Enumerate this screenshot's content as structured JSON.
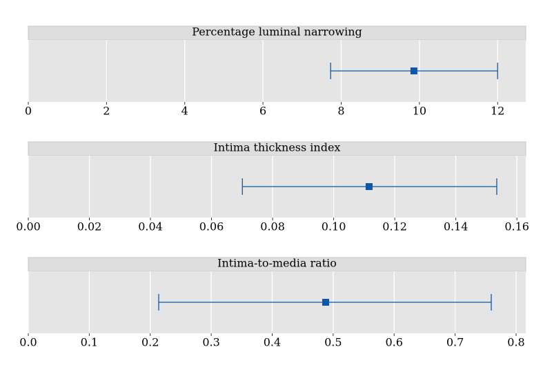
{
  "chart_data": [
    {
      "type": "errorbar",
      "title": "Percentage luminal narrowing",
      "values": [
        9.86
      ],
      "lower": [
        7.73
      ],
      "upper": [
        12.0
      ],
      "color": "#0d57a6",
      "xlim": [
        0,
        12.72
      ],
      "xticks": [
        0,
        2,
        4,
        6,
        8,
        10,
        12
      ],
      "grid": true
    },
    {
      "type": "errorbar",
      "title": "Intima thickness index",
      "values": [
        0.1116
      ],
      "lower": [
        0.0701
      ],
      "upper": [
        0.1534
      ],
      "color": "#0d57a6",
      "xlim": [
        0,
        0.1629
      ],
      "xticks": [
        {
          "value": 0,
          "label": "0.00"
        },
        0.02,
        0.04,
        0.06,
        0.08,
        {
          "value": 0.1,
          "label": "0.10"
        },
        0.12,
        0.14,
        0.16
      ],
      "grid": true
    },
    {
      "type": "errorbar",
      "title": "Intima-to-media ratio",
      "values": [
        0.4877
      ],
      "lower": [
        0.2139
      ],
      "upper": [
        0.7593
      ],
      "color": "#0d57a6",
      "xlim": [
        0,
        0.8159
      ],
      "xticks": [
        {
          "value": 0,
          "label": "0.0"
        },
        0.1,
        0.2,
        0.3,
        0.4,
        0.5,
        0.6,
        0.7,
        0.8
      ],
      "grid": true
    }
  ]
}
